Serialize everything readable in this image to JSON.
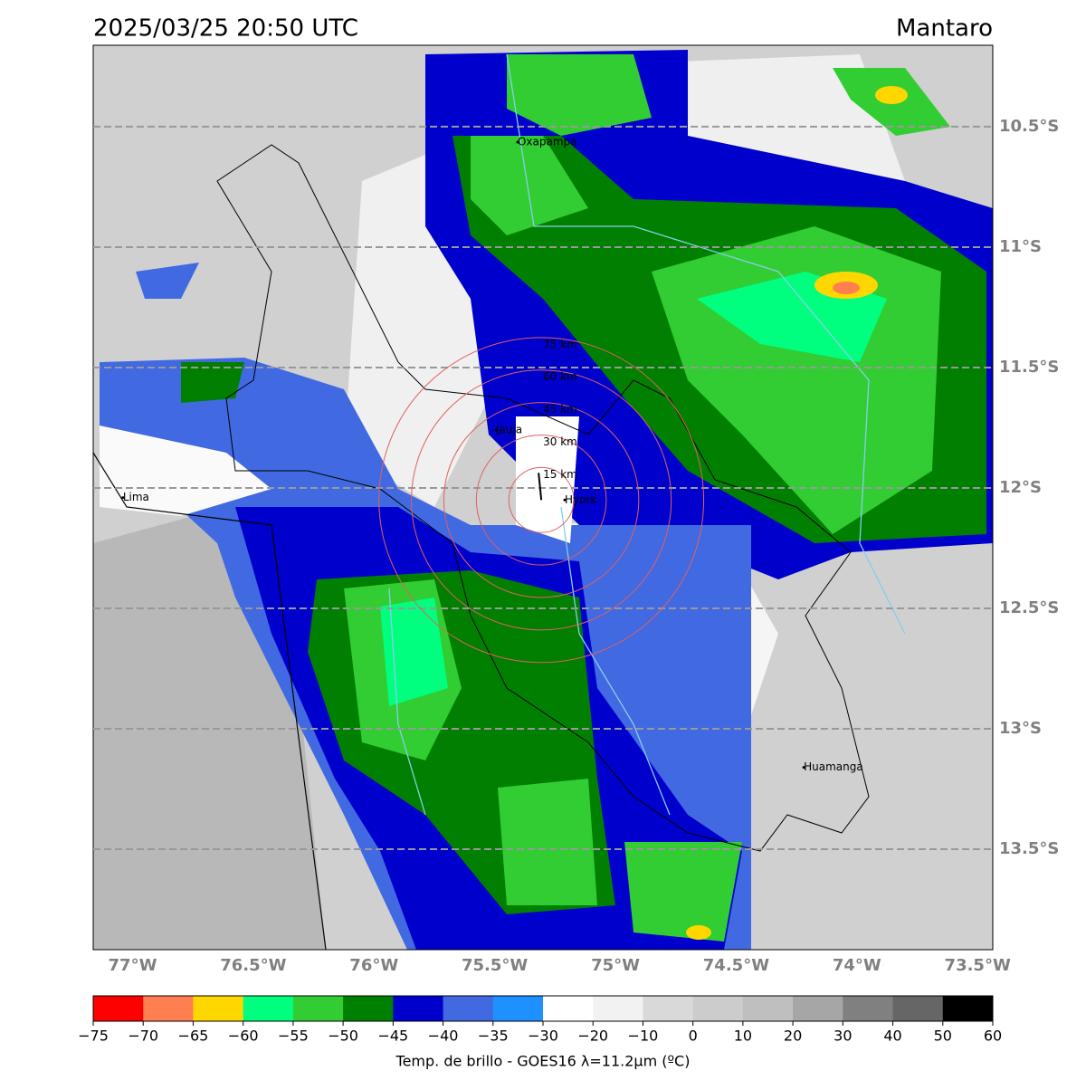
{
  "title": "2025/03/25 20:50 UTC",
  "location": "Mantaro",
  "map": {
    "xlim": [
      -77.163,
      -73.437
    ],
    "ylim": [
      -13.917,
      -10.162
    ],
    "lon_ticks": [
      {
        "value": -77,
        "label": "77°W"
      },
      {
        "value": -76.5,
        "label": "76.5°W"
      },
      {
        "value": -76,
        "label": "76°W"
      },
      {
        "value": -75.5,
        "label": "75.5°W"
      },
      {
        "value": -75,
        "label": "75°W"
      },
      {
        "value": -74.5,
        "label": "74.5°W"
      },
      {
        "value": -74,
        "label": "74°W"
      },
      {
        "value": -73.5,
        "label": "73.5°W"
      }
    ],
    "lat_ticks": [
      {
        "value": -10.5,
        "label": "10.5°S"
      },
      {
        "value": -11,
        "label": "11°S"
      },
      {
        "value": -11.5,
        "label": "11.5°S"
      },
      {
        "value": -12,
        "label": "12°S"
      },
      {
        "value": -12.5,
        "label": "12.5°S"
      },
      {
        "value": -13,
        "label": "13°S"
      },
      {
        "value": -13.5,
        "label": "13.5°S"
      }
    ],
    "cities": [
      {
        "name": "Oxapampa",
        "lon": -75.405,
        "lat": -10.564
      },
      {
        "name": "Jauja",
        "lon": -75.495,
        "lat": -11.76
      },
      {
        "name": "Hyork",
        "lon": -75.21,
        "lat": -12.05
      },
      {
        "name": "Lima",
        "lon": -77.04,
        "lat": -12.04
      },
      {
        "name": "Huamanga",
        "lon": -74.22,
        "lat": -13.16
      }
    ],
    "radar": {
      "lon": -75.307,
      "lat": -12.05,
      "rings": [
        {
          "value": 15,
          "label": "15 km"
        },
        {
          "value": 30,
          "label": "30 km"
        },
        {
          "value": 45,
          "label": "45 km"
        },
        {
          "value": 60,
          "label": "60 km"
        },
        {
          "value": 75,
          "label": "75 km"
        }
      ]
    }
  },
  "colorbar": {
    "label": "Temp. de brillo - GOES16 λ=11.2μm (ºC)",
    "ticks": [
      {
        "value": -75,
        "label": "−75"
      },
      {
        "value": -70,
        "label": "−70"
      },
      {
        "value": -65,
        "label": "−65"
      },
      {
        "value": -60,
        "label": "−60"
      },
      {
        "value": -55,
        "label": "−55"
      },
      {
        "value": -50,
        "label": "−50"
      },
      {
        "value": -45,
        "label": "−45"
      },
      {
        "value": -40,
        "label": "−40"
      },
      {
        "value": -35,
        "label": "−35"
      },
      {
        "value": -30,
        "label": "−30"
      },
      {
        "value": -20,
        "label": "−20"
      },
      {
        "value": -10,
        "label": "−10"
      },
      0,
      10,
      20,
      30,
      40,
      50,
      60
    ],
    "colors": [
      "#ff0000",
      "#ff7f50",
      "#ffd700",
      "#00ff7f",
      "#32cd32",
      "#008000",
      "#0000cd",
      "#4169e1",
      "#1e90ff",
      "#ffffff",
      "#f2f2f2",
      "#d9d9d9",
      "#cccccc",
      "#bfbfbf",
      "#a6a6a6",
      "#808080",
      "#666666",
      "#000000"
    ]
  }
}
